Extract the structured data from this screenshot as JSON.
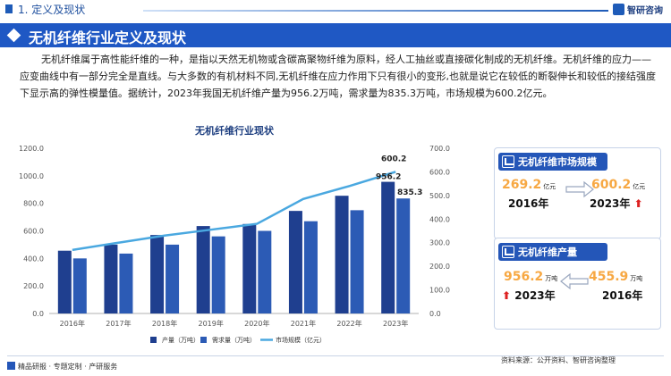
{
  "header": {
    "section_title": "1. 定义及现状",
    "logo_text": "智研咨询",
    "brand_color": "#1f58c4"
  },
  "banner": {
    "title": "无机纤维行业定义及现状"
  },
  "intro": {
    "text": "无机纤维属于高性能纤维的一种，是指以天然无机物或含碳高聚物纤维为原料，经人工抽丝或直接碳化制成的无机纤维。无机纤维的应力——应变曲线中有一部分完全是直线。与大多数的有机材料不同,无机纤维在应力作用下只有很小的变形,也就是说它在较低的断裂伸长和较低的接结强度下显示高的弹性模量值。据统计，2023年我国无机纤维产量为956.2万吨，需求量为835.3万吨，市场规模为600.2亿元。"
  },
  "chart_data": {
    "type": "bar",
    "title": "无机纤维行业现状",
    "categories": [
      "2016年",
      "2017年",
      "2018年",
      "2019年",
      "2020年",
      "2021年",
      "2022年",
      "2023年"
    ],
    "series": [
      {
        "name": "产量（万吨）",
        "type": "bar",
        "axis": "left",
        "color": "#1f3f8f",
        "values": [
          456,
          500,
          570,
          635,
          650,
          745,
          855,
          956.2
        ]
      },
      {
        "name": "需求量（万吨）",
        "type": "bar",
        "axis": "left",
        "color": "#2c5bb5",
        "values": [
          400,
          435,
          500,
          560,
          600,
          670,
          750,
          835.3
        ]
      },
      {
        "name": "市场规模（亿元）",
        "type": "line",
        "axis": "right",
        "color": "#4aa8e0",
        "values": [
          269.2,
          300,
          330,
          355,
          380,
          485,
          540,
          600.2
        ]
      }
    ],
    "data_labels": {
      "bar_2023": "956.2",
      "demand_2023": "835.3",
      "line_2023": "600.2"
    },
    "y_left": {
      "range": [
        0,
        1200
      ],
      "ticks": [
        "0.0",
        "200.0",
        "400.0",
        "600.0",
        "800.0",
        "1000.0",
        "1200.0"
      ]
    },
    "y_right": {
      "range": [
        0,
        700
      ],
      "ticks": [
        "0.0",
        "100.0",
        "200.0",
        "300.0",
        "400.0",
        "500.0",
        "600.0",
        "700.0"
      ]
    },
    "grid": false,
    "legend_position": "bottom"
  },
  "cards": {
    "market": {
      "title": "无机纤维市场规模",
      "left_value": "269.2",
      "left_unit": "亿元",
      "left_year": "2016年",
      "right_value": "600.2",
      "right_unit": "亿元",
      "right_year": "2023年"
    },
    "output": {
      "title": "无机纤维产量",
      "left_value": "956.2",
      "left_unit": "万吨",
      "left_year": "2023年",
      "right_value": "455.9",
      "right_unit": "万吨",
      "right_year": "2016年"
    },
    "value_color": "#f7a843"
  },
  "footer": {
    "left": "精品研报 · 专题定制 · 产研服务",
    "right": "资料来源：公开资料、智研咨询整理"
  }
}
